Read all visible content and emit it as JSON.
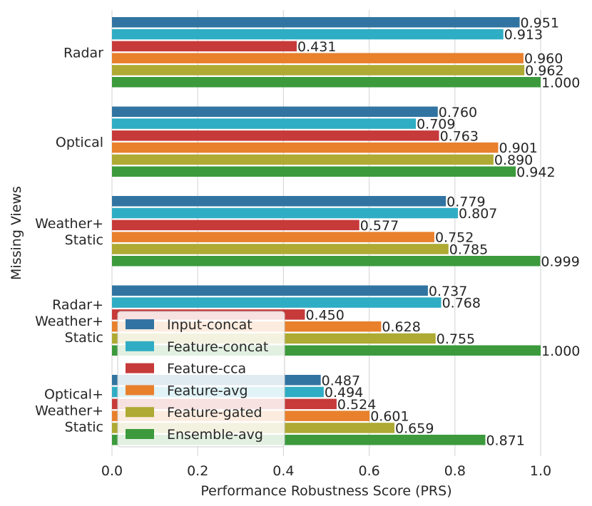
{
  "chart_data": {
    "type": "bar",
    "orientation": "horizontal",
    "title": "",
    "xlabel": "Performance Robustness Score (PRS)",
    "ylabel": "Missing Views",
    "xlim": [
      0.0,
      1.0
    ],
    "xticks": [
      "0.0",
      "0.2",
      "0.4",
      "0.6",
      "0.8",
      "1.0"
    ],
    "grid": "vertical",
    "legend_position": "lower-left",
    "categories": [
      [
        "Radar"
      ],
      [
        "Optical"
      ],
      [
        "Weather+",
        "Static"
      ],
      [
        "Radar+",
        "Weather+",
        "Static"
      ],
      [
        "Optical+",
        "Weather+",
        "Static"
      ]
    ],
    "series": [
      {
        "name": "Input-concat",
        "color": "#3274a1",
        "values": [
          0.951,
          0.76,
          0.779,
          0.737,
          0.487
        ],
        "labels": [
          "0.951",
          "0.760",
          "0.779",
          "0.737",
          "0.487"
        ]
      },
      {
        "name": "Feature-concat",
        "color": "#2fadc4",
        "values": [
          0.913,
          0.709,
          0.807,
          0.768,
          0.494
        ],
        "labels": [
          "0.913",
          "0.709",
          "0.807",
          "0.768",
          "0.494"
        ]
      },
      {
        "name": "Feature-cca",
        "color": "#c73a3a",
        "values": [
          0.431,
          0.763,
          0.577,
          0.45,
          0.524
        ],
        "labels": [
          "0.431",
          "0.763",
          "0.577",
          "0.450",
          "0.524"
        ]
      },
      {
        "name": "Feature-avg",
        "color": "#e8802c",
        "values": [
          0.96,
          0.901,
          0.752,
          0.628,
          0.601
        ],
        "labels": [
          "0.960",
          "0.901",
          "0.752",
          "0.628",
          "0.601"
        ]
      },
      {
        "name": "Feature-gated",
        "color": "#aeaa33",
        "values": [
          0.962,
          0.89,
          0.785,
          0.755,
          0.659
        ],
        "labels": [
          "0.962",
          "0.890",
          "0.785",
          "0.755",
          "0.659"
        ]
      },
      {
        "name": "Ensemble-avg",
        "color": "#3c9a3c",
        "values": [
          1.0,
          0.942,
          0.999,
          1.0,
          0.871
        ],
        "labels": [
          "1.000",
          "0.942",
          "0.999",
          "1.000",
          "0.871"
        ]
      }
    ]
  }
}
